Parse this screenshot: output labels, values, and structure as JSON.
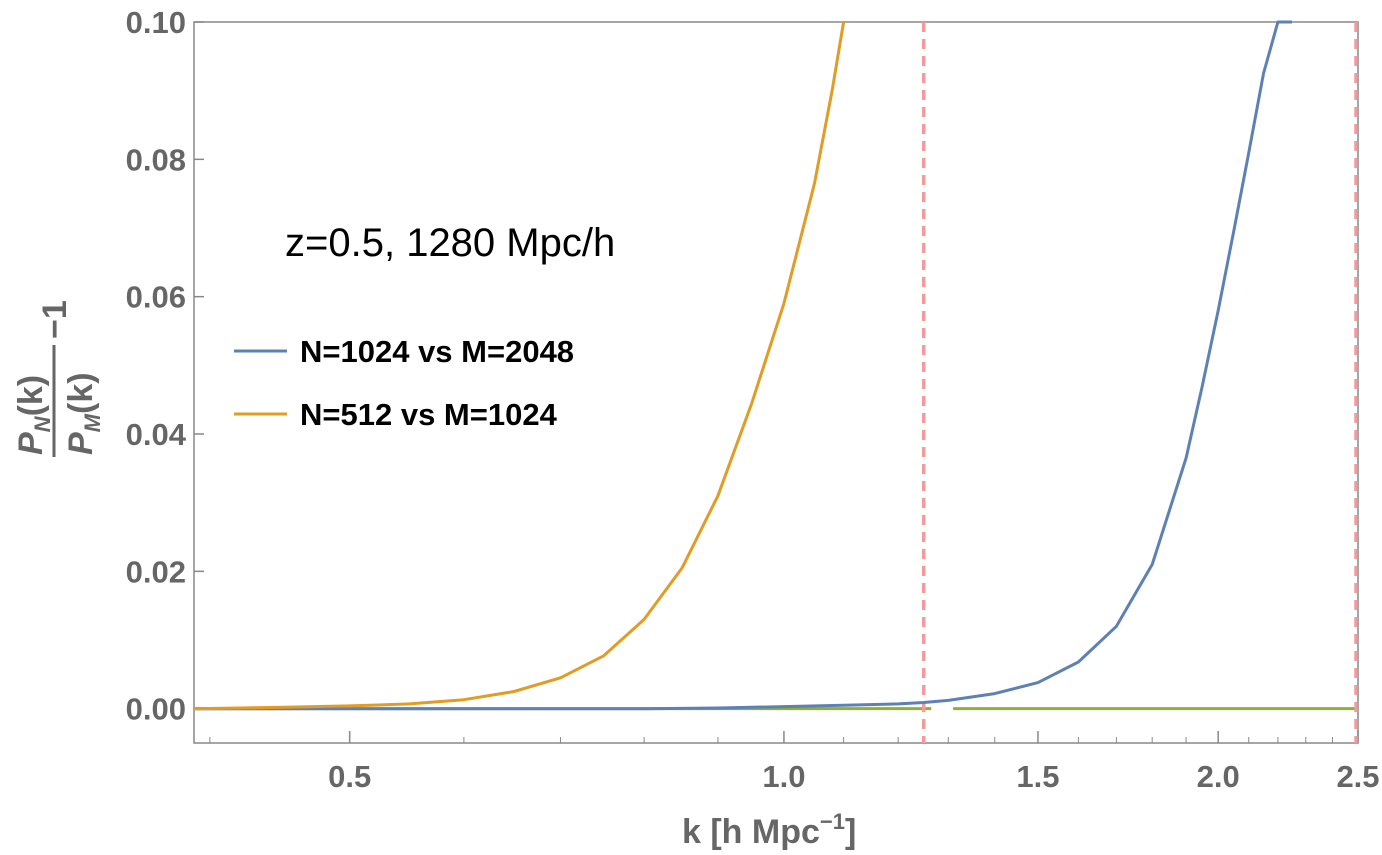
{
  "chart_data": {
    "type": "line",
    "title": "",
    "annotation": "z=0.5, 1280 Mpc/h",
    "xlabel": {
      "main": "k [h Mpc",
      "superscript": "−1",
      "close": "]"
    },
    "ylabel": {
      "numerator": "P",
      "numerator_sub": "N",
      "numerator_arg": "(k)",
      "denominator": "P",
      "denominator_sub": "M",
      "denominator_arg": "(k)",
      "suffix": "−1"
    },
    "xscale": "log",
    "xlim": [
      0.39,
      2.5
    ],
    "ylim": [
      -0.005,
      0.1
    ],
    "xticks": [
      {
        "value": 0.5,
        "label": "0.5"
      },
      {
        "value": 1.0,
        "label": "1.0"
      },
      {
        "value": 1.5,
        "label": "1.5"
      },
      {
        "value": 2.0,
        "label": "2.0"
      },
      {
        "value": 2.5,
        "label": "2.5"
      }
    ],
    "xminor": [
      0.4,
      0.6,
      0.7,
      0.8,
      0.9,
      1.1,
      1.2,
      1.3,
      1.4,
      1.6,
      1.7,
      1.8,
      1.9,
      2.1,
      2.2,
      2.3,
      2.4
    ],
    "yticks": [
      {
        "value": 0.0,
        "label": "0.00"
      },
      {
        "value": 0.02,
        "label": "0.02"
      },
      {
        "value": 0.04,
        "label": "0.04"
      },
      {
        "value": 0.06,
        "label": "0.06"
      },
      {
        "value": 0.08,
        "label": "0.08"
      },
      {
        "value": 0.1,
        "label": "0.10"
      }
    ],
    "legend_position": "left",
    "series": [
      {
        "name": "N=1024 vs M=2048",
        "color": "#5e81b5",
        "x": [
          0.39,
          0.5,
          0.6,
          0.7,
          0.8,
          0.9,
          1.0,
          1.1,
          1.2,
          1.25,
          1.3,
          1.4,
          1.5,
          1.6,
          1.7,
          1.8,
          1.9,
          1.95,
          2.0,
          2.05,
          2.1,
          2.15,
          2.2,
          2.25
        ],
        "y": [
          0.0,
          0.0,
          0.0,
          0.0,
          0.0,
          0.0001,
          0.0003,
          0.0005,
          0.0007,
          0.0009,
          0.0012,
          0.0022,
          0.0038,
          0.0068,
          0.012,
          0.021,
          0.0365,
          0.047,
          0.058,
          0.0695,
          0.081,
          0.0925,
          0.1,
          0.1
        ]
      },
      {
        "name": "N=512 vs M=1024",
        "color": "#e19c24",
        "x": [
          0.39,
          0.45,
          0.5,
          0.55,
          0.6,
          0.65,
          0.7,
          0.75,
          0.8,
          0.85,
          0.9,
          0.95,
          1.0,
          1.05,
          1.08,
          1.1
        ],
        "y": [
          0.0,
          0.0002,
          0.0004,
          0.0007,
          0.0013,
          0.0025,
          0.0045,
          0.0077,
          0.013,
          0.0205,
          0.031,
          0.0445,
          0.059,
          0.0765,
          0.09,
          0.1
        ]
      }
    ],
    "reference_lines": [
      {
        "name": "zero-line",
        "color": "#8fb032",
        "y": 0.0,
        "segments": [
          [
            0.39,
            1.265
          ],
          [
            1.31,
            2.5
          ]
        ]
      }
    ],
    "vertical_markers": [
      {
        "name": "vertical-marker-1",
        "color": "#f59a9a",
        "x": 1.25
      },
      {
        "name": "vertical-marker-2",
        "color": "#f59a9a",
        "x": 2.5
      }
    ]
  }
}
